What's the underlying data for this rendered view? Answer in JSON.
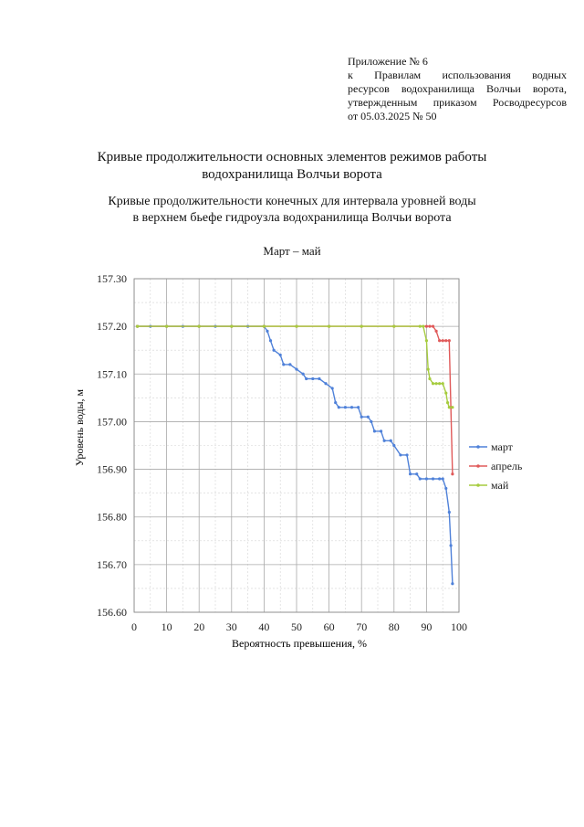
{
  "appendix": {
    "line1": "Приложение № 6",
    "line2": "к Правилам использования водных",
    "line3": "ресурсов водохранилища Волчьи ворота,",
    "line4": "утвержденным приказом Росводресурсов",
    "line5": "от 05.03.2025 № 50"
  },
  "heading": {
    "main_line1": "Кривые продолжительности основных элементов режимов работы",
    "main_line2": "водохранилища Волчьи ворота",
    "sub_line1": "Кривые продолжительности конечных для интервала уровней воды",
    "sub_line2": "в верхнем бьефе гидроузла водохранилища Волчьи ворота",
    "period": "Март – май"
  },
  "chart_data": {
    "type": "line",
    "xlabel": "Вероятность превышения, %",
    "ylabel": "Уровень воды, м",
    "xlim": [
      0,
      100
    ],
    "ylim": [
      156.6,
      157.3
    ],
    "x_ticks": [
      "0",
      "10",
      "20",
      "30",
      "40",
      "50",
      "60",
      "70",
      "80",
      "90",
      "100"
    ],
    "y_ticks": [
      "156.60",
      "156.70",
      "156.80",
      "156.90",
      "157.00",
      "157.10",
      "157.20",
      "157.30"
    ],
    "grid": true,
    "legend_position": "right",
    "series": [
      {
        "name": "март",
        "color": "#4f81d9",
        "points": [
          [
            1,
            157.2
          ],
          [
            5,
            157.2
          ],
          [
            10,
            157.2
          ],
          [
            15,
            157.2
          ],
          [
            20,
            157.2
          ],
          [
            25,
            157.2
          ],
          [
            30,
            157.2
          ],
          [
            35,
            157.2
          ],
          [
            40,
            157.2
          ],
          [
            41,
            157.19
          ],
          [
            42,
            157.17
          ],
          [
            43,
            157.15
          ],
          [
            45,
            157.14
          ],
          [
            46,
            157.12
          ],
          [
            48,
            157.12
          ],
          [
            50,
            157.11
          ],
          [
            52,
            157.1
          ],
          [
            53,
            157.09
          ],
          [
            55,
            157.09
          ],
          [
            57,
            157.09
          ],
          [
            59,
            157.08
          ],
          [
            61,
            157.07
          ],
          [
            62,
            157.04
          ],
          [
            63,
            157.03
          ],
          [
            65,
            157.03
          ],
          [
            67,
            157.03
          ],
          [
            69,
            157.03
          ],
          [
            70,
            157.01
          ],
          [
            72,
            157.01
          ],
          [
            73,
            157.0
          ],
          [
            74,
            156.98
          ],
          [
            76,
            156.98
          ],
          [
            77,
            156.96
          ],
          [
            79,
            156.96
          ],
          [
            80,
            156.95
          ],
          [
            82,
            156.93
          ],
          [
            84,
            156.93
          ],
          [
            85,
            156.89
          ],
          [
            87,
            156.89
          ],
          [
            88,
            156.88
          ],
          [
            90,
            156.88
          ],
          [
            92,
            156.88
          ],
          [
            94,
            156.88
          ],
          [
            95,
            156.88
          ],
          [
            96,
            156.86
          ],
          [
            97,
            156.81
          ],
          [
            97.5,
            156.74
          ],
          [
            98,
            156.66
          ]
        ]
      },
      {
        "name": "апрель",
        "color": "#e05a5a",
        "points": [
          [
            1,
            157.2
          ],
          [
            10,
            157.2
          ],
          [
            20,
            157.2
          ],
          [
            30,
            157.2
          ],
          [
            40,
            157.2
          ],
          [
            50,
            157.2
          ],
          [
            60,
            157.2
          ],
          [
            70,
            157.2
          ],
          [
            80,
            157.2
          ],
          [
            90,
            157.2
          ],
          [
            91,
            157.2
          ],
          [
            92,
            157.2
          ],
          [
            93,
            157.19
          ],
          [
            94,
            157.17
          ],
          [
            95,
            157.17
          ],
          [
            96,
            157.17
          ],
          [
            97,
            157.17
          ],
          [
            97.5,
            157.03
          ],
          [
            98,
            156.89
          ]
        ]
      },
      {
        "name": "май",
        "color": "#a6cc3f",
        "points": [
          [
            1,
            157.2
          ],
          [
            10,
            157.2
          ],
          [
            20,
            157.2
          ],
          [
            30,
            157.2
          ],
          [
            40,
            157.2
          ],
          [
            50,
            157.2
          ],
          [
            60,
            157.2
          ],
          [
            70,
            157.2
          ],
          [
            80,
            157.2
          ],
          [
            88,
            157.2
          ],
          [
            89,
            157.2
          ],
          [
            90,
            157.17
          ],
          [
            90.5,
            157.11
          ],
          [
            91,
            157.09
          ],
          [
            92,
            157.08
          ],
          [
            93,
            157.08
          ],
          [
            94,
            157.08
          ],
          [
            95,
            157.08
          ],
          [
            96,
            157.06
          ],
          [
            96.5,
            157.04
          ],
          [
            97,
            157.03
          ],
          [
            98,
            157.03
          ]
        ]
      }
    ]
  }
}
